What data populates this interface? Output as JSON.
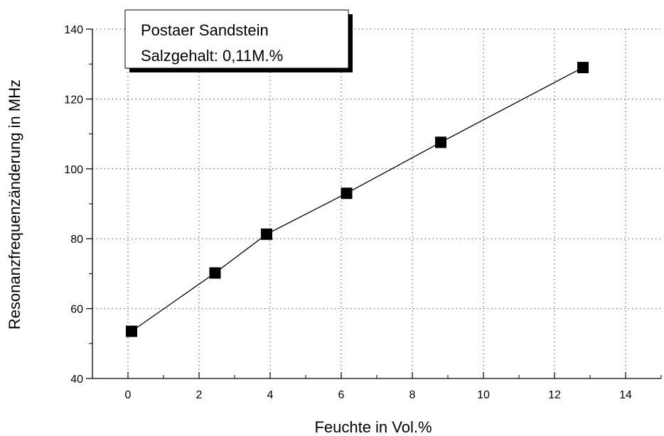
{
  "chart_data": {
    "type": "line",
    "xlabel": "Feuchte in Vol.%",
    "ylabel": "Resonanzfrequenzänderung in MHz",
    "xlim": [
      -1,
      15
    ],
    "ylim": [
      40,
      140
    ],
    "x_ticks": [
      0,
      2,
      4,
      6,
      8,
      10,
      12,
      14
    ],
    "y_ticks": [
      40,
      60,
      80,
      100,
      120,
      140
    ],
    "x_tick_labels": [
      "0",
      "2",
      "4",
      "6",
      "8",
      "10",
      "12",
      "14"
    ],
    "y_tick_labels": [
      "40",
      "60",
      "80",
      "100",
      "120",
      "140"
    ],
    "grid": true,
    "marker": "square",
    "legend": {
      "placement": "top-left",
      "lines": [
        "Postaer Sandstein",
        "Salzgehalt: 0,11M.%"
      ]
    },
    "series": [
      {
        "x": [
          0.1,
          2.45,
          3.9,
          6.15,
          8.8,
          12.8
        ],
        "values": [
          53.5,
          70.2,
          81.3,
          93.0,
          107.6,
          129.0
        ]
      }
    ]
  }
}
